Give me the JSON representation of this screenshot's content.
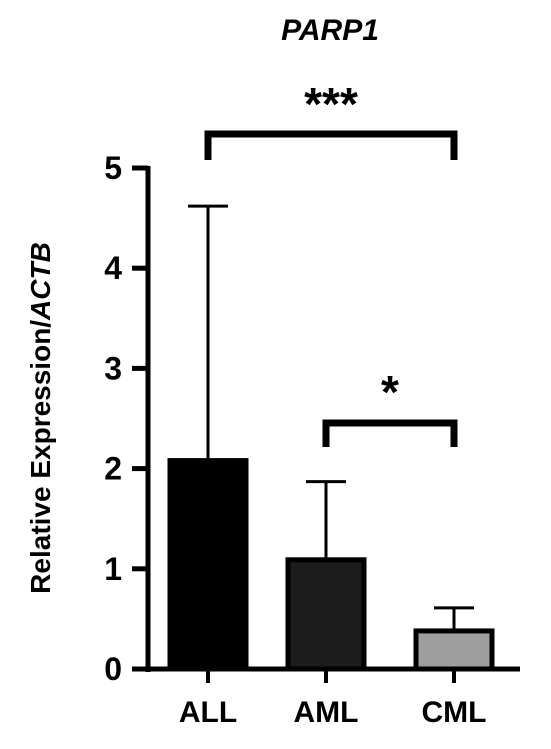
{
  "chart_data": {
    "type": "bar",
    "title": "PARP1",
    "xlabel": "",
    "ylabel_main": "Relative Expression/",
    "ylabel_italic": "ACTB",
    "ylim": [
      0,
      5
    ],
    "yticks": [
      "0",
      "1",
      "2",
      "3",
      "4",
      "5"
    ],
    "categories": [
      "ALL",
      "AML",
      "CML"
    ],
    "values": [
      2.08,
      1.09,
      0.38
    ],
    "error_upper": [
      4.62,
      1.87,
      0.61
    ],
    "colors": [
      "#000000",
      "#1c1c1c",
      "#9e9e9e"
    ],
    "significance": [
      {
        "from": "ALL",
        "to": "CML",
        "label": "***"
      },
      {
        "from": "AML",
        "to": "CML",
        "label": "*"
      }
    ],
    "grid": false,
    "legend": "none"
  }
}
